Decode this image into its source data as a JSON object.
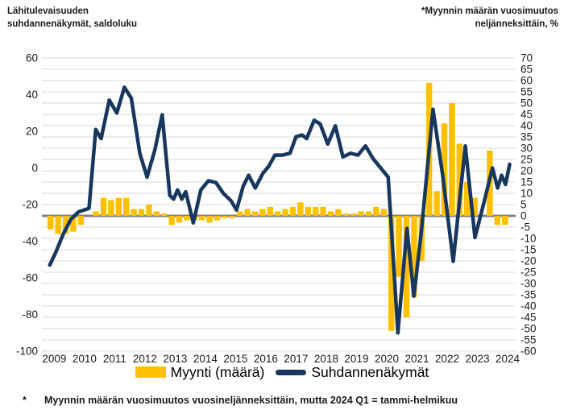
{
  "header": {
    "left_title_line1": "Lähitulevaisuuden",
    "left_title_line2": "suhdannenäkymät, saldoluku",
    "right_title_line1": "*Myynnin määrän vuosimuutos",
    "right_title_line2": "neljänneksittäin, %"
  },
  "legend": [
    {
      "label": "Myynti (määrä)",
      "type": "bar",
      "color": "#FFC000"
    },
    {
      "label": "Suhdannenäkymät",
      "type": "line",
      "color": "#17375E"
    }
  ],
  "footnote": {
    "marker": "*",
    "text": "Myynnin määrän vuosimuutos vuosineljänneksittäin, mutta 2024 Q1 = tammi-helmikuu"
  },
  "chart_data": {
    "type": "combo",
    "x_years": [
      2009,
      2010,
      2011,
      2012,
      2013,
      2014,
      2015,
      2016,
      2017,
      2018,
      2019,
      2020,
      2021,
      2022,
      2023,
      2024
    ],
    "left_axis": {
      "title": "saldoluku",
      "min": -100,
      "max": 60,
      "tick_step": 20
    },
    "right_axis": {
      "title": "%",
      "min": -60,
      "max": 70,
      "tick_step": 5
    },
    "grid": {
      "color": "#D9D9D9",
      "zero_line_color": "#808080"
    },
    "series": [
      {
        "name": "Myynti (määrä)",
        "type": "bar",
        "axis": "right",
        "color": "#FFC000",
        "start_quarter": "2009Q1",
        "values": [
          -6,
          -8,
          -8,
          -7,
          -4,
          0,
          2,
          8,
          7,
          8,
          8,
          3,
          3,
          5,
          2,
          1,
          -4,
          -3,
          -2,
          -2,
          -2,
          -3,
          -2,
          -1,
          -1,
          2,
          3,
          2,
          3,
          4,
          2,
          3,
          4,
          6,
          4,
          4,
          4,
          2,
          3,
          1,
          1,
          2,
          2,
          4,
          3,
          -51,
          -27,
          -45,
          -36,
          -20,
          59,
          11,
          41,
          50,
          32,
          15,
          8,
          0,
          29,
          -4,
          -4
        ]
      },
      {
        "name": "Suhdannenäkymät",
        "type": "line",
        "axis": "left",
        "color": "#17375E",
        "points": [
          [
            2009.1,
            -53
          ],
          [
            2009.3,
            -46
          ],
          [
            2009.55,
            -36
          ],
          [
            2009.8,
            -28
          ],
          [
            2010.05,
            -24
          ],
          [
            2010.4,
            -22
          ],
          [
            2010.62,
            21
          ],
          [
            2010.8,
            16
          ],
          [
            2011.07,
            37
          ],
          [
            2011.32,
            30
          ],
          [
            2011.57,
            44
          ],
          [
            2011.8,
            38
          ],
          [
            2012.08,
            8
          ],
          [
            2012.32,
            -5
          ],
          [
            2012.58,
            10
          ],
          [
            2012.82,
            29
          ],
          [
            2013.07,
            -15
          ],
          [
            2013.2,
            -17
          ],
          [
            2013.33,
            -12
          ],
          [
            2013.47,
            -17
          ],
          [
            2013.6,
            -13
          ],
          [
            2013.85,
            -30
          ],
          [
            2014.1,
            -12
          ],
          [
            2014.35,
            -7
          ],
          [
            2014.6,
            -8
          ],
          [
            2014.85,
            -14
          ],
          [
            2015.1,
            -18
          ],
          [
            2015.28,
            -23
          ],
          [
            2015.5,
            -10
          ],
          [
            2015.68,
            -4
          ],
          [
            2015.9,
            -11
          ],
          [
            2016.15,
            -3
          ],
          [
            2016.35,
            1
          ],
          [
            2016.55,
            7
          ],
          [
            2016.8,
            7
          ],
          [
            2017.05,
            8
          ],
          [
            2017.25,
            17
          ],
          [
            2017.45,
            18
          ],
          [
            2017.6,
            16
          ],
          [
            2017.85,
            26
          ],
          [
            2018.05,
            24
          ],
          [
            2018.3,
            13
          ],
          [
            2018.55,
            23
          ],
          [
            2018.8,
            6
          ],
          [
            2019.05,
            8
          ],
          [
            2019.3,
            7
          ],
          [
            2019.55,
            12
          ],
          [
            2019.8,
            5
          ],
          [
            2020.1,
            -1
          ],
          [
            2020.3,
            -5
          ],
          [
            2020.62,
            -90
          ],
          [
            2020.92,
            -33
          ],
          [
            2021.15,
            -70
          ],
          [
            2021.4,
            -34
          ],
          [
            2021.78,
            32
          ],
          [
            2022.1,
            -4
          ],
          [
            2022.45,
            -51
          ],
          [
            2022.85,
            12
          ],
          [
            2023.17,
            -38
          ],
          [
            2023.45,
            -20
          ],
          [
            2023.75,
            0
          ],
          [
            2023.92,
            -11
          ],
          [
            2024.05,
            -4
          ],
          [
            2024.18,
            -9
          ],
          [
            2024.32,
            2
          ]
        ]
      }
    ]
  }
}
